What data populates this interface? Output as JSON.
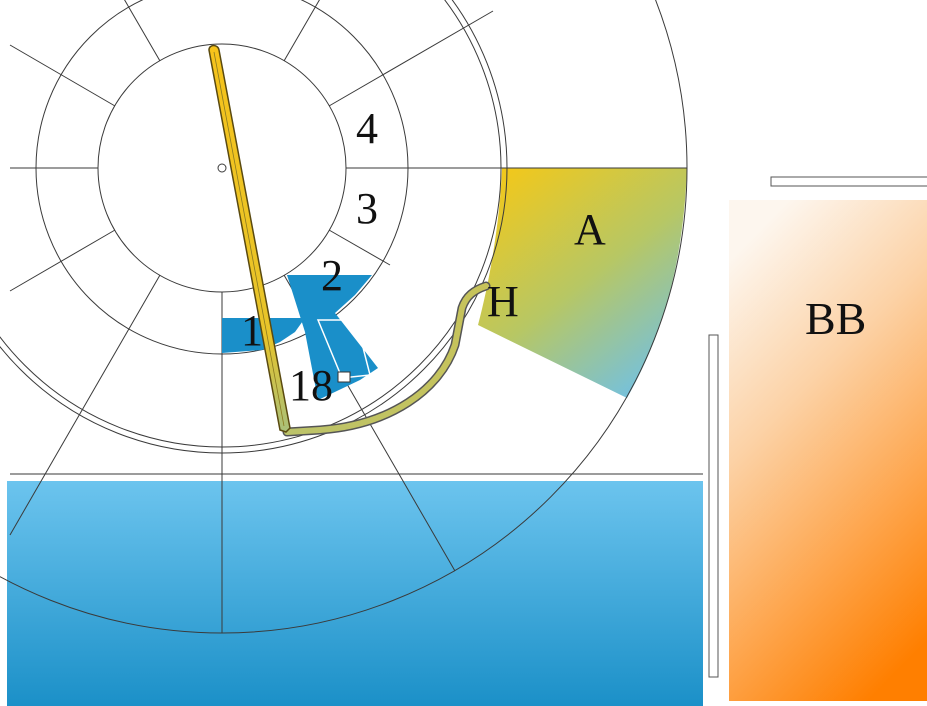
{
  "labels": {
    "sector_a": "A",
    "block_bb": "BB",
    "h_point": "H",
    "seg_1": "1",
    "seg_2": "2",
    "seg_3": "3",
    "seg_4": "4",
    "seg_18": "18"
  },
  "colors": {
    "blue_light": "#6cc4ee",
    "blue_dark": "#1a8fc9",
    "sector_a_top": "#f1c81c",
    "sector_a_bottom": "#6dc0ec",
    "bb_top": "#fdf5ec",
    "bb_bottom": "#ff7f00",
    "needle": "#f6c31b",
    "line": "#3a3a3a"
  }
}
